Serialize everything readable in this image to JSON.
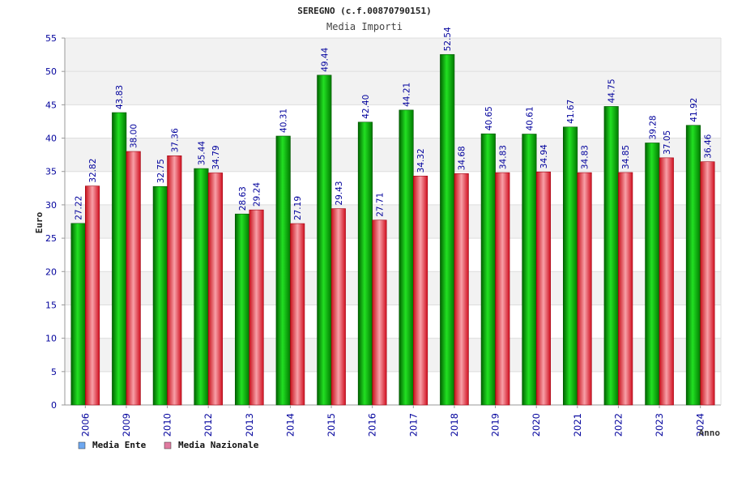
{
  "chart_title": "SEREGNO (c.f.00870790151)",
  "chart_subtitle": "Media Importi",
  "colors": {
    "series_1": "#00b400",
    "series_2": "#e8343c",
    "legend_1": "#6ea8f0",
    "legend_2": "#e07aa0",
    "axis_text": "#00009c",
    "label_text": "#00009c",
    "band": "#f2f2f2",
    "grid": "#dddddd"
  },
  "chart_data": {
    "type": "bar",
    "title": "SEREGNO (c.f.00870790151)",
    "subtitle": "Media Importi",
    "xlabel": "Anno",
    "ylabel": "Euro",
    "ylim": [
      0,
      55
    ],
    "yticks": [
      0,
      5,
      10,
      15,
      20,
      25,
      30,
      35,
      40,
      45,
      50,
      55
    ],
    "grid": true,
    "legend_position": "bottom-left",
    "categories": [
      "2006",
      "2009",
      "2010",
      "2012",
      "2013",
      "2014",
      "2015",
      "2016",
      "2017",
      "2018",
      "2019",
      "2020",
      "2021",
      "2022",
      "2023",
      "2024"
    ],
    "series": [
      {
        "name": "Media Ente",
        "values": [
          27.22,
          43.83,
          32.75,
          35.44,
          28.63,
          40.31,
          49.44,
          42.4,
          44.21,
          52.54,
          40.65,
          40.61,
          41.67,
          44.75,
          39.28,
          41.92
        ],
        "labels": [
          "27.22",
          "43.83",
          "32.75",
          "35.44",
          "28.63",
          "40.31",
          "49.44",
          "42.40",
          "44.21",
          "52.54",
          "40.65",
          "40.61",
          "41.67",
          "44.75",
          "39.28",
          "41.92"
        ]
      },
      {
        "name": "Media Nazionale",
        "values": [
          32.82,
          38.0,
          37.36,
          34.79,
          29.24,
          27.19,
          29.43,
          27.71,
          34.32,
          34.68,
          34.83,
          34.94,
          34.83,
          34.85,
          37.05,
          36.46
        ],
        "labels": [
          "32.82",
          "38.00",
          "37.36",
          "34.79",
          "29.24",
          "27.19",
          "29.43",
          "27.71",
          "34.32",
          "34.68",
          "34.83",
          "34.94",
          "34.83",
          "34.85",
          "37.05",
          "36.46"
        ]
      }
    ]
  }
}
